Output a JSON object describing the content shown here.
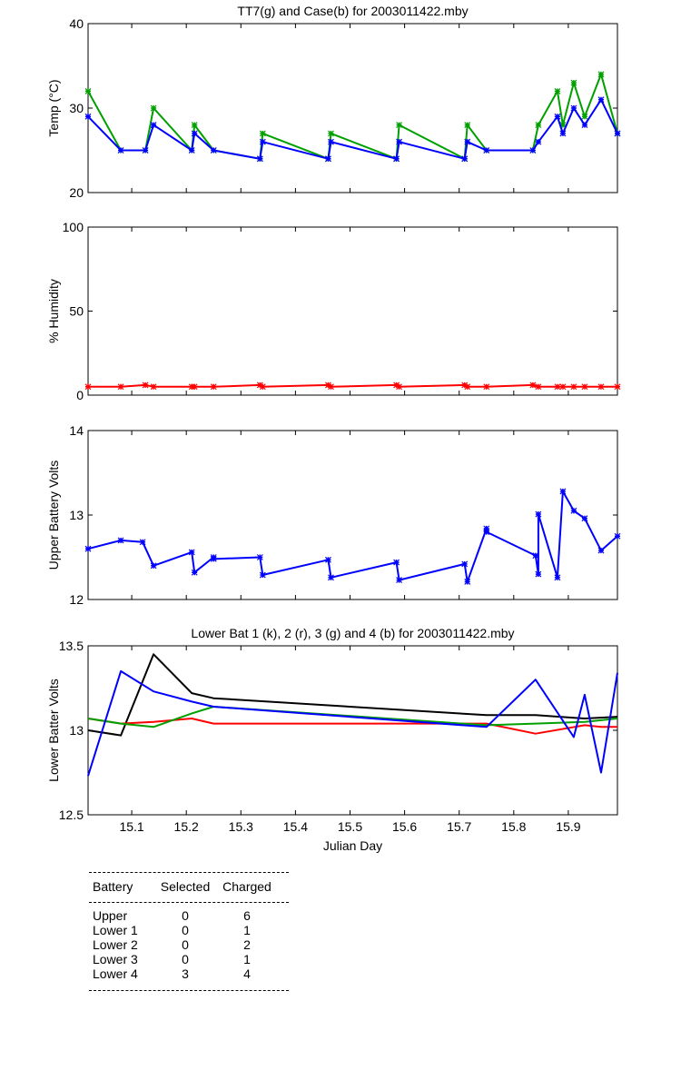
{
  "chart_data": [
    {
      "type": "line",
      "title": "TT7(g) and Case(b) for 2003011422.mby",
      "xlabel": "",
      "ylabel": "Temp  (°C)",
      "xlim": [
        15.02,
        15.99
      ],
      "ylim": [
        20,
        40
      ],
      "yticks": [
        "20",
        "30",
        "40"
      ],
      "markers": true,
      "series": [
        {
          "color": "#00a000",
          "x": [
            15.02,
            15.08,
            15.125,
            15.14,
            15.21,
            15.215,
            15.25,
            15.335,
            15.34,
            15.46,
            15.465,
            15.585,
            15.59,
            15.71,
            15.715,
            15.75,
            15.835,
            15.845,
            15.88,
            15.89,
            15.91,
            15.93,
            15.96,
            15.99
          ],
          "y": [
            32,
            25,
            25,
            30,
            25,
            28,
            25,
            24,
            27,
            24,
            27,
            24,
            28,
            24,
            28,
            25,
            25,
            28,
            32,
            28,
            33,
            29,
            34,
            27
          ]
        },
        {
          "color": "#0000ff",
          "x": [
            15.02,
            15.08,
            15.125,
            15.14,
            15.21,
            15.215,
            15.25,
            15.335,
            15.34,
            15.46,
            15.465,
            15.585,
            15.59,
            15.71,
            15.715,
            15.75,
            15.835,
            15.845,
            15.88,
            15.89,
            15.91,
            15.93,
            15.96,
            15.99
          ],
          "y": [
            29,
            25,
            25,
            28,
            25,
            27,
            25,
            24,
            26,
            24,
            26,
            24,
            26,
            24,
            26,
            25,
            25,
            26,
            29,
            27,
            30,
            28,
            31,
            27
          ]
        }
      ]
    },
    {
      "type": "line",
      "title": "",
      "xlabel": "",
      "ylabel": "% Humidity",
      "xlim": [
        15.02,
        15.99
      ],
      "ylim": [
        0,
        100
      ],
      "yticks": [
        "0",
        "50",
        "100"
      ],
      "markers": true,
      "series": [
        {
          "color": "#ff0000",
          "x": [
            15.02,
            15.08,
            15.125,
            15.14,
            15.21,
            15.215,
            15.25,
            15.335,
            15.34,
            15.46,
            15.465,
            15.585,
            15.59,
            15.71,
            15.715,
            15.75,
            15.835,
            15.845,
            15.88,
            15.89,
            15.91,
            15.93,
            15.96,
            15.99
          ],
          "y": [
            5,
            5,
            6,
            5,
            5,
            5,
            5,
            6,
            5,
            6,
            5,
            6,
            5,
            6,
            5,
            5,
            6,
            5,
            5,
            5,
            5,
            5,
            5,
            5
          ]
        }
      ]
    },
    {
      "type": "line",
      "title": "",
      "xlabel": "",
      "ylabel": "Upper Battery Volts",
      "xlim": [
        15.02,
        15.99
      ],
      "ylim": [
        12,
        14
      ],
      "yticks": [
        "12",
        "13",
        "14"
      ],
      "markers": true,
      "series": [
        {
          "color": "#0000ff",
          "x": [
            15.02,
            15.08,
            15.12,
            15.14,
            15.21,
            15.215,
            15.25,
            15.25,
            15.335,
            15.34,
            15.46,
            15.465,
            15.585,
            15.59,
            15.71,
            15.715,
            15.75,
            15.75,
            15.84,
            15.845,
            15.845,
            15.88,
            15.89,
            15.91,
            15.93,
            15.96,
            15.99
          ],
          "y": [
            12.6,
            12.7,
            12.68,
            12.4,
            12.56,
            12.32,
            12.5,
            12.48,
            12.5,
            12.29,
            12.47,
            12.26,
            12.44,
            12.23,
            12.42,
            12.21,
            12.84,
            12.8,
            12.52,
            12.3,
            13.01,
            12.26,
            13.28,
            13.05,
            12.96,
            12.58,
            12.75
          ]
        }
      ]
    },
    {
      "type": "line",
      "title": "Lower Bat 1 (k), 2 (r), 3 (g) and 4 (b) for 2003011422.mby",
      "xlabel": "Julian Day",
      "ylabel": "Lower Batter Volts",
      "xlim": [
        15.02,
        15.99
      ],
      "ylim": [
        12.5,
        13.5
      ],
      "yticks": [
        "12.5",
        "13",
        "13.5"
      ],
      "xticks": [
        "15.1",
        "15.2",
        "15.3",
        "15.4",
        "15.5",
        "15.6",
        "15.7",
        "15.8",
        "15.9"
      ],
      "markers": false,
      "series": [
        {
          "color": "#000000",
          "x": [
            15.02,
            15.08,
            15.14,
            15.21,
            15.25,
            15.75,
            15.84,
            15.93,
            15.99
          ],
          "y": [
            13.0,
            12.97,
            13.45,
            13.22,
            13.19,
            13.09,
            13.09,
            13.07,
            13.08
          ]
        },
        {
          "color": "#ff0000",
          "x": [
            15.02,
            15.08,
            15.14,
            15.21,
            15.25,
            15.75,
            15.84,
            15.93,
            15.96,
            15.99
          ],
          "y": [
            13.07,
            13.04,
            13.05,
            13.07,
            13.04,
            13.04,
            12.98,
            13.03,
            13.02,
            13.02
          ]
        },
        {
          "color": "#00a000",
          "x": [
            15.02,
            15.08,
            15.14,
            15.21,
            15.25,
            15.75,
            15.84,
            15.93,
            15.99
          ],
          "y": [
            13.07,
            13.04,
            13.02,
            13.1,
            13.14,
            13.03,
            13.04,
            13.05,
            13.07
          ]
        },
        {
          "color": "#0000ff",
          "x": [
            15.02,
            15.08,
            15.14,
            15.21,
            15.25,
            15.75,
            15.84,
            15.91,
            15.93,
            15.96,
            15.99
          ],
          "y": [
            12.73,
            13.35,
            13.23,
            13.17,
            13.14,
            13.02,
            13.3,
            12.96,
            13.21,
            12.75,
            13.34
          ]
        }
      ]
    }
  ],
  "table": {
    "headers": [
      "Battery",
      "Selected",
      "Charged"
    ],
    "rows": [
      [
        "Upper",
        "0",
        "6"
      ],
      [
        "Lower 1",
        "0",
        "1"
      ],
      [
        "Lower 2",
        "0",
        "2"
      ],
      [
        "Lower 3",
        "0",
        "1"
      ],
      [
        "Lower 4",
        "3",
        "4"
      ]
    ]
  }
}
